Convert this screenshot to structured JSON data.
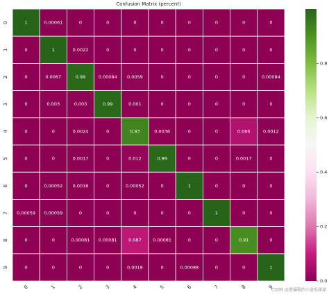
{
  "chart_data": {
    "type": "heatmap",
    "title": "Confusion Matrix (percent)",
    "x_categories": [
      "0",
      "1",
      "2",
      "3",
      "4",
      "5",
      "6",
      "7",
      "8",
      "9"
    ],
    "y_categories": [
      "0",
      "1",
      "2",
      "3",
      "4",
      "5",
      "6",
      "7",
      "8",
      "9"
    ],
    "values": [
      [
        1,
        0.00061,
        0,
        0,
        0,
        0,
        0,
        0,
        0,
        0
      ],
      [
        0,
        1,
        0.0022,
        0,
        0,
        0,
        0,
        0,
        0,
        0
      ],
      [
        0,
        0.0067,
        0.99,
        0.00084,
        0.0059,
        0,
        0,
        0,
        0,
        0.00084
      ],
      [
        0,
        0.003,
        0.003,
        0.99,
        0.001,
        0,
        0,
        0,
        0,
        0
      ],
      [
        0,
        0,
        0.0024,
        0,
        0.93,
        0.0036,
        0,
        0,
        0.066,
        0.0012
      ],
      [
        0,
        0,
        0.0017,
        0,
        0.012,
        0.99,
        0,
        0,
        0.0017,
        0
      ],
      [
        0,
        0.00052,
        0.0016,
        0,
        0.00052,
        0,
        1,
        0,
        0,
        0
      ],
      [
        0.00059,
        0.00059,
        0,
        0,
        0,
        0,
        0,
        1,
        0,
        0
      ],
      [
        0,
        0,
        0.00081,
        0.00081,
        0.087,
        0.00081,
        0,
        0,
        0.91,
        0
      ],
      [
        0,
        0,
        0,
        0,
        0.0018,
        0,
        0.00088,
        0,
        0,
        1
      ]
    ],
    "colormap": [
      "#8e0152",
      "#c51b7d",
      "#de77ae",
      "#f1b6da",
      "#fde0ef",
      "#f7f7f7",
      "#e6f5d0",
      "#b8e186",
      "#7fbc41",
      "#4d9221",
      "#276419"
    ],
    "clim": [
      0,
      1
    ],
    "cticks": [
      {
        "value": 0,
        "label": "0.0"
      },
      0.2,
      0.4,
      0.6,
      0.8
    ],
    "watermark": "CSDN @爱编程的小金毛球球"
  }
}
